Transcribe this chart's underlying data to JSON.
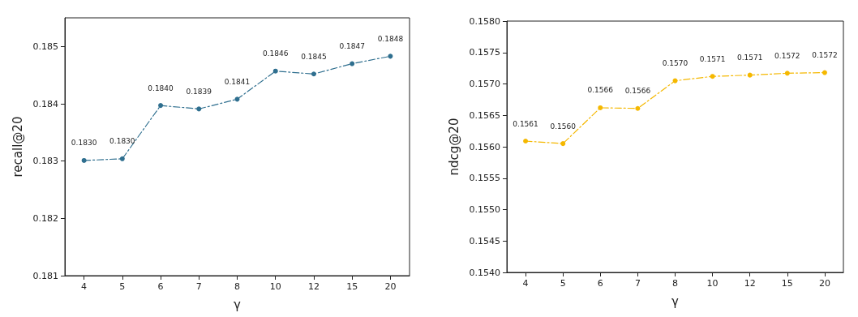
{
  "chart_data": [
    {
      "type": "line",
      "xlabel": "γ",
      "ylabel": "recall@20",
      "categories": [
        "4",
        "5",
        "6",
        "7",
        "8",
        "10",
        "12",
        "15",
        "20"
      ],
      "series": [
        {
          "color": "#2f6f8f",
          "values": [
            0.18301,
            0.18304,
            0.18397,
            0.18391,
            0.18408,
            0.18457,
            0.18452,
            0.1847,
            0.18483
          ],
          "value_labels": [
            "0.1830",
            "0.1830",
            "0.1840",
            "0.1839",
            "0.1841",
            "0.1846",
            "0.1845",
            "0.1847",
            "0.1848"
          ]
        }
      ],
      "ylim": [
        0.181,
        0.1855
      ],
      "yticks": [
        0.181,
        0.182,
        0.183,
        0.184,
        0.185
      ],
      "grid": false,
      "marker": "circle",
      "line_style": "dashed"
    },
    {
      "type": "line",
      "xlabel": "γ",
      "ylabel": "ndcg@20",
      "categories": [
        "4",
        "5",
        "6",
        "7",
        "8",
        "10",
        "12",
        "15",
        "20"
      ],
      "series": [
        {
          "color": "#f5b800",
          "values": [
            0.15609,
            0.15605,
            0.15662,
            0.15661,
            0.15705,
            0.15712,
            0.15714,
            0.15717,
            0.15718
          ],
          "value_labels": [
            "0.1561",
            "0.1560",
            "0.1566",
            "0.1566",
            "0.1570",
            "0.1571",
            "0.1571",
            "0.1572",
            "0.1572"
          ]
        }
      ],
      "ylim": [
        0.154,
        0.158
      ],
      "yticks": [
        {
          "value": 0.154,
          "label": "0.1540"
        },
        {
          "value": 0.1545,
          "label": "0.1545"
        },
        {
          "value": 0.155,
          "label": "0.1550"
        },
        {
          "value": 0.1555,
          "label": "0.1555"
        },
        {
          "value": 0.156,
          "label": "0.1560"
        },
        {
          "value": 0.1565,
          "label": "0.1565"
        },
        {
          "value": 0.157,
          "label": "0.1570"
        },
        {
          "value": 0.1575,
          "label": "0.1575"
        },
        {
          "value": 0.158,
          "label": "0.1580"
        }
      ],
      "grid": false,
      "marker": "circle",
      "line_style": "dashed"
    }
  ]
}
